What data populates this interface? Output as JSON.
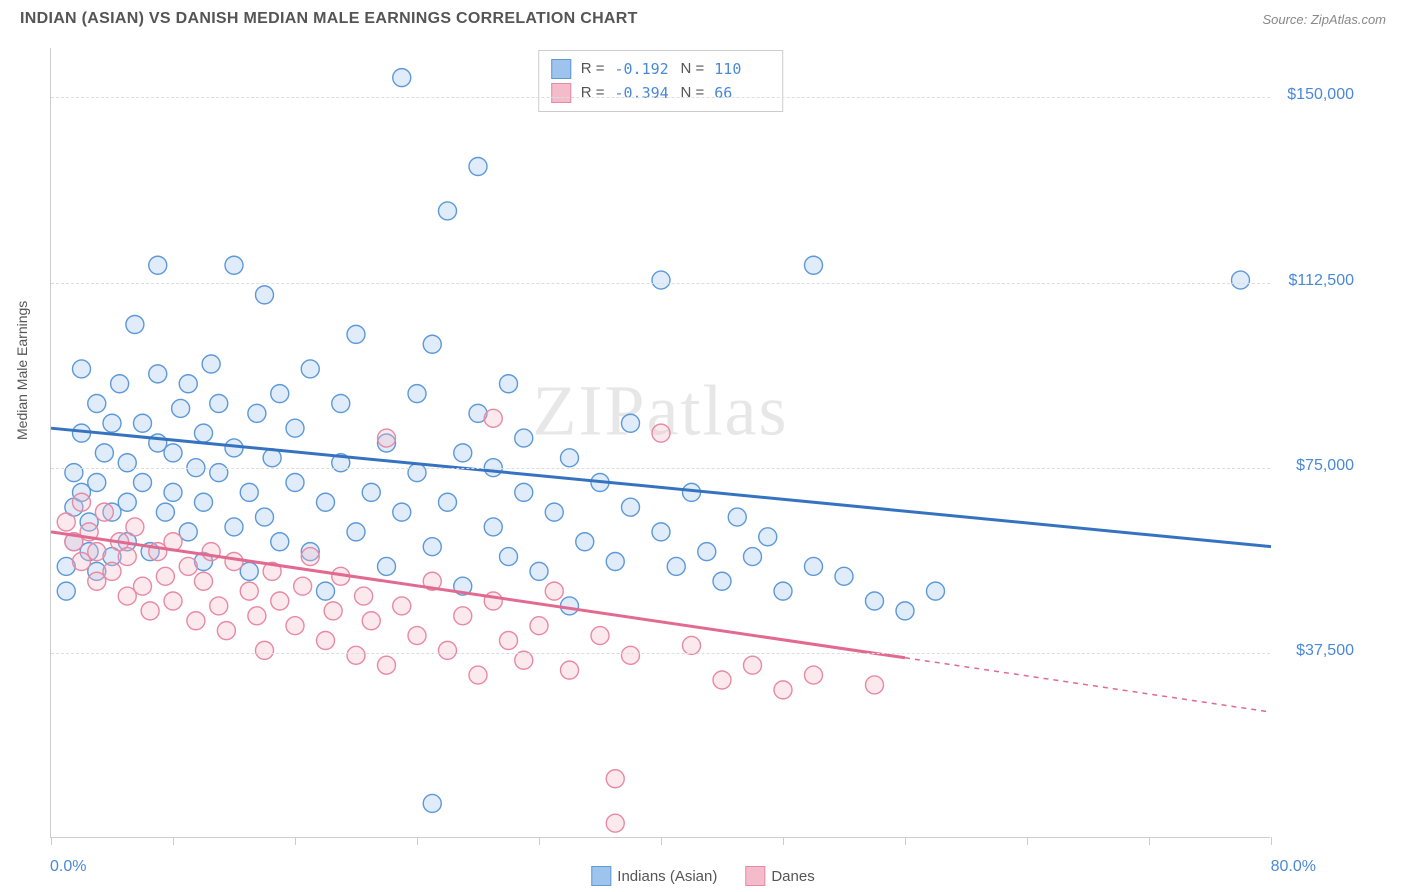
{
  "title": "INDIAN (ASIAN) VS DANISH MEDIAN MALE EARNINGS CORRELATION CHART",
  "source": "Source: ZipAtlas.com",
  "watermark": "ZIPatlas",
  "chart": {
    "type": "scatter",
    "ylabel": "Median Male Earnings",
    "xlim": [
      0,
      80
    ],
    "ylim": [
      0,
      160000
    ],
    "x_axis_min_label": "0.0%",
    "x_axis_max_label": "80.0%",
    "ytick_labels": [
      "$37,500",
      "$75,000",
      "$112,500",
      "$150,000"
    ],
    "ytick_values": [
      37500,
      75000,
      112500,
      150000
    ],
    "xtick_values": [
      0,
      8,
      16,
      24,
      32,
      40,
      48,
      56,
      64,
      72,
      80
    ],
    "background_color": "#ffffff",
    "grid_color": "#dddddd",
    "axis_color": "#cccccc",
    "ytick_label_color": "#4a88d8",
    "xaxis_label_color": "#4a88d8",
    "marker_radius": 9,
    "marker_fill_opacity": 0.32,
    "marker_stroke_width": 1.4,
    "series": [
      {
        "name": "Indians (Asian)",
        "color_fill": "#9ec3ec",
        "color_stroke": "#5d99d8",
        "trend_color": "#3573c0",
        "trend_width": 3,
        "R": "-0.192",
        "N": "110",
        "trend": {
          "x1": 0,
          "y1": 83000,
          "x2": 80,
          "y2": 59000,
          "dash_after_x": 80
        },
        "points": [
          [
            1,
            50000
          ],
          [
            1,
            55000
          ],
          [
            1.5,
            67000
          ],
          [
            1.5,
            74000
          ],
          [
            1.5,
            60000
          ],
          [
            2,
            82000
          ],
          [
            2,
            70000
          ],
          [
            2,
            95000
          ],
          [
            2.5,
            58000
          ],
          [
            2.5,
            64000
          ],
          [
            3,
            88000
          ],
          [
            3,
            72000
          ],
          [
            3,
            54000
          ],
          [
            3.5,
            78000
          ],
          [
            4,
            66000
          ],
          [
            4,
            84000
          ],
          [
            4,
            57000
          ],
          [
            4.5,
            92000
          ],
          [
            5,
            68000
          ],
          [
            5,
            76000
          ],
          [
            5,
            60000
          ],
          [
            5.5,
            104000
          ],
          [
            6,
            72000
          ],
          [
            6,
            84000
          ],
          [
            6.5,
            58000
          ],
          [
            7,
            80000
          ],
          [
            7,
            94000
          ],
          [
            7,
            116000
          ],
          [
            7.5,
            66000
          ],
          [
            8,
            78000
          ],
          [
            8,
            70000
          ],
          [
            8.5,
            87000
          ],
          [
            9,
            62000
          ],
          [
            9,
            92000
          ],
          [
            9.5,
            75000
          ],
          [
            10,
            82000
          ],
          [
            10,
            68000
          ],
          [
            10,
            56000
          ],
          [
            10.5,
            96000
          ],
          [
            11,
            74000
          ],
          [
            11,
            88000
          ],
          [
            12,
            63000
          ],
          [
            12,
            79000
          ],
          [
            12,
            116000
          ],
          [
            13,
            70000
          ],
          [
            13,
            54000
          ],
          [
            13.5,
            86000
          ],
          [
            14,
            110000
          ],
          [
            14,
            65000
          ],
          [
            14.5,
            77000
          ],
          [
            15,
            90000
          ],
          [
            15,
            60000
          ],
          [
            16,
            72000
          ],
          [
            16,
            83000
          ],
          [
            17,
            58000
          ],
          [
            17,
            95000
          ],
          [
            18,
            68000
          ],
          [
            18,
            50000
          ],
          [
            19,
            76000
          ],
          [
            19,
            88000
          ],
          [
            20,
            62000
          ],
          [
            20,
            102000
          ],
          [
            21,
            70000
          ],
          [
            22,
            55000
          ],
          [
            22,
            80000
          ],
          [
            23,
            154000
          ],
          [
            23,
            66000
          ],
          [
            24,
            74000
          ],
          [
            24,
            90000
          ],
          [
            25,
            59000
          ],
          [
            25,
            100000
          ],
          [
            26,
            127000
          ],
          [
            26,
            68000
          ],
          [
            27,
            78000
          ],
          [
            27,
            51000
          ],
          [
            28,
            86000
          ],
          [
            28,
            136000
          ],
          [
            29,
            63000
          ],
          [
            29,
            75000
          ],
          [
            30,
            57000
          ],
          [
            30,
            92000
          ],
          [
            31,
            70000
          ],
          [
            31,
            81000
          ],
          [
            32,
            54000
          ],
          [
            33,
            66000
          ],
          [
            34,
            77000
          ],
          [
            34,
            47000
          ],
          [
            35,
            60000
          ],
          [
            36,
            72000
          ],
          [
            37,
            56000
          ],
          [
            38,
            67000
          ],
          [
            38,
            84000
          ],
          [
            40,
            62000
          ],
          [
            40,
            113000
          ],
          [
            41,
            55000
          ],
          [
            42,
            70000
          ],
          [
            43,
            58000
          ],
          [
            44,
            52000
          ],
          [
            45,
            65000
          ],
          [
            46,
            57000
          ],
          [
            47,
            61000
          ],
          [
            48,
            50000
          ],
          [
            50,
            55000
          ],
          [
            50,
            116000
          ],
          [
            52,
            53000
          ],
          [
            54,
            48000
          ],
          [
            56,
            46000
          ],
          [
            58,
            50000
          ],
          [
            25,
            7000
          ],
          [
            78,
            113000
          ]
        ]
      },
      {
        "name": "Danes",
        "color_fill": "#f4bccb",
        "color_stroke": "#e889a4",
        "trend_color": "#e26990",
        "trend_width": 3,
        "R": "-0.394",
        "N": "66",
        "trend": {
          "x1": 0,
          "y1": 62000,
          "x2": 56,
          "y2": 36500,
          "dash_after_x": 56,
          "dash_x2": 80,
          "dash_y2": 25500
        },
        "points": [
          [
            1,
            64000
          ],
          [
            1.5,
            60000
          ],
          [
            2,
            68000
          ],
          [
            2,
            56000
          ],
          [
            2.5,
            62000
          ],
          [
            3,
            58000
          ],
          [
            3,
            52000
          ],
          [
            3.5,
            66000
          ],
          [
            4,
            54000
          ],
          [
            4.5,
            60000
          ],
          [
            5,
            49000
          ],
          [
            5,
            57000
          ],
          [
            5.5,
            63000
          ],
          [
            6,
            51000
          ],
          [
            6.5,
            46000
          ],
          [
            7,
            58000
          ],
          [
            7.5,
            53000
          ],
          [
            8,
            48000
          ],
          [
            8,
            60000
          ],
          [
            9,
            55000
          ],
          [
            9.5,
            44000
          ],
          [
            10,
            52000
          ],
          [
            10.5,
            58000
          ],
          [
            11,
            47000
          ],
          [
            11.5,
            42000
          ],
          [
            12,
            56000
          ],
          [
            13,
            50000
          ],
          [
            13.5,
            45000
          ],
          [
            14,
            38000
          ],
          [
            14.5,
            54000
          ],
          [
            15,
            48000
          ],
          [
            16,
            43000
          ],
          [
            16.5,
            51000
          ],
          [
            17,
            57000
          ],
          [
            18,
            40000
          ],
          [
            18.5,
            46000
          ],
          [
            19,
            53000
          ],
          [
            20,
            37000
          ],
          [
            20.5,
            49000
          ],
          [
            21,
            44000
          ],
          [
            22,
            35000
          ],
          [
            22,
            81000
          ],
          [
            23,
            47000
          ],
          [
            24,
            41000
          ],
          [
            25,
            52000
          ],
          [
            26,
            38000
          ],
          [
            27,
            45000
          ],
          [
            28,
            33000
          ],
          [
            29,
            48000
          ],
          [
            29,
            85000
          ],
          [
            30,
            40000
          ],
          [
            31,
            36000
          ],
          [
            32,
            43000
          ],
          [
            33,
            50000
          ],
          [
            34,
            34000
          ],
          [
            36,
            41000
          ],
          [
            37,
            12000
          ],
          [
            37,
            3000
          ],
          [
            38,
            37000
          ],
          [
            40,
            82000
          ],
          [
            42,
            39000
          ],
          [
            44,
            32000
          ],
          [
            46,
            35000
          ],
          [
            48,
            30000
          ],
          [
            50,
            33000
          ],
          [
            54,
            31000
          ]
        ]
      }
    ]
  },
  "bottom_legend": [
    {
      "label": "Indians (Asian)",
      "fill": "#9ec3ec",
      "stroke": "#5d99d8"
    },
    {
      "label": "Danes",
      "fill": "#f4bccb",
      "stroke": "#e889a4"
    }
  ]
}
